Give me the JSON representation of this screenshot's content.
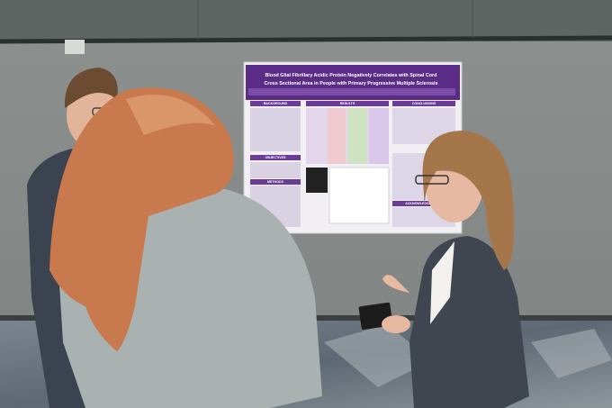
{
  "poster": {
    "title_lines": [
      "Blood Glial Fibrillary Acidic Protein Negatively Correlates with Spinal Cord",
      "Cross Sectional Area in People with Primary Progressive Multiple Sclerosis"
    ],
    "sections": [
      "BACKGROUND",
      "OBJECTIVES",
      "METHODS",
      "RESULTS",
      "CONCLUSIONS",
      "ACKNOWLEDGEMENTS"
    ]
  }
}
